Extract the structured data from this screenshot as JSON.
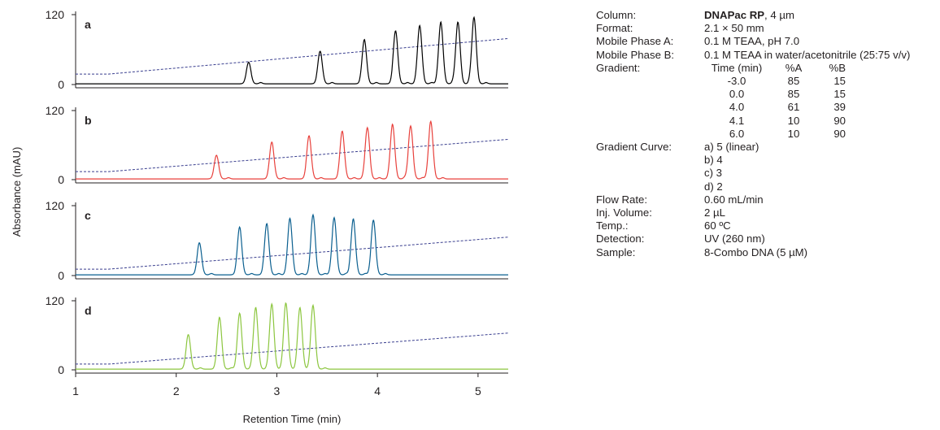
{
  "chart_data": {
    "type": "line",
    "ylabel": "Absorbance (mAU)",
    "xlabel": "Retention Time (min)",
    "xlim": [
      1,
      5.3
    ],
    "xticks": [
      1,
      2,
      3,
      4,
      5
    ],
    "ylim": [
      0,
      120
    ],
    "yticks": [
      0,
      120
    ],
    "panels": [
      {
        "label": "a",
        "color": "#000000",
        "peaks": [
          {
            "t": 2.72,
            "h": 37
          },
          {
            "t": 3.43,
            "h": 56
          },
          {
            "t": 3.87,
            "h": 76
          },
          {
            "t": 4.18,
            "h": 91
          },
          {
            "t": 4.42,
            "h": 100
          },
          {
            "t": 4.63,
            "h": 106
          },
          {
            "t": 4.8,
            "h": 106
          },
          {
            "t": 4.96,
            "h": 114
          }
        ],
        "gradient_curve": [
          [
            1,
            18
          ],
          [
            1.33,
            18
          ],
          [
            5.3,
            79
          ]
        ]
      },
      {
        "label": "b",
        "color": "#e8413c",
        "peaks": [
          {
            "t": 2.4,
            "h": 41
          },
          {
            "t": 2.95,
            "h": 64
          },
          {
            "t": 3.32,
            "h": 75
          },
          {
            "t": 3.65,
            "h": 83
          },
          {
            "t": 3.9,
            "h": 89
          },
          {
            "t": 4.15,
            "h": 95
          },
          {
            "t": 4.33,
            "h": 92
          },
          {
            "t": 4.53,
            "h": 100
          }
        ],
        "gradient_curve": [
          [
            1,
            14
          ],
          [
            1.33,
            14
          ],
          [
            5.3,
            70
          ]
        ]
      },
      {
        "label": "c",
        "color": "#0a5f8f",
        "peaks": [
          {
            "t": 2.23,
            "h": 55
          },
          {
            "t": 2.63,
            "h": 82
          },
          {
            "t": 2.9,
            "h": 88
          },
          {
            "t": 3.13,
            "h": 97
          },
          {
            "t": 3.36,
            "h": 103
          },
          {
            "t": 3.57,
            "h": 98
          },
          {
            "t": 3.76,
            "h": 96
          },
          {
            "t": 3.96,
            "h": 94
          }
        ],
        "gradient_curve": [
          [
            1,
            11
          ],
          [
            1.33,
            11
          ],
          [
            5.3,
            66
          ]
        ]
      },
      {
        "label": "d",
        "color": "#8cc63f",
        "peaks": [
          {
            "t": 2.12,
            "h": 60
          },
          {
            "t": 2.43,
            "h": 90
          },
          {
            "t": 2.63,
            "h": 97
          },
          {
            "t": 2.79,
            "h": 107
          },
          {
            "t": 2.95,
            "h": 113
          },
          {
            "t": 3.09,
            "h": 114
          },
          {
            "t": 3.23,
            "h": 106
          },
          {
            "t": 3.36,
            "h": 109
          }
        ],
        "gradient_curve": [
          [
            1,
            10
          ],
          [
            1.33,
            10
          ],
          [
            5.3,
            64
          ]
        ]
      }
    ]
  },
  "conditions": {
    "column_label": "Column:",
    "column_bold": "DNAPac RP",
    "column_rest": ", 4 µm",
    "rows_top": [
      {
        "k": "Format:",
        "v": "2.1 × 50 mm"
      },
      {
        "k": "Mobile Phase A:",
        "v": "0.1 M TEAA, pH 7.0"
      },
      {
        "k": "Mobile Phase B:",
        "v": "0.1 M TEAA in water/acetonitrile (25:75 v/v)"
      }
    ],
    "gradient_label": "Gradient:",
    "gradient_header": [
      "Time (min)",
      "%A",
      "%B"
    ],
    "gradient_rows": [
      [
        "-3.0",
        "85",
        "15"
      ],
      [
        "0.0",
        "85",
        "15"
      ],
      [
        "4.0",
        "61",
        "39"
      ],
      [
        "4.1",
        "10",
        "90"
      ],
      [
        "6.0",
        "10",
        "90"
      ]
    ],
    "curve_label": "Gradient Curve:",
    "curve_values": [
      "a)  5 (linear)",
      "b)  4",
      "c)  3",
      "d)  2"
    ],
    "rows_bottom": [
      {
        "k": "Flow Rate:",
        "v": "0.60 mL/min"
      },
      {
        "k": "Inj. Volume:",
        "v": "2 µL"
      },
      {
        "k": "Temp.:",
        "v": "60 ºC"
      },
      {
        "k": "Detection:",
        "v": "UV (260 nm)"
      },
      {
        "k": "Sample:",
        "v": "8-Combo DNA (5 µM)"
      }
    ]
  }
}
